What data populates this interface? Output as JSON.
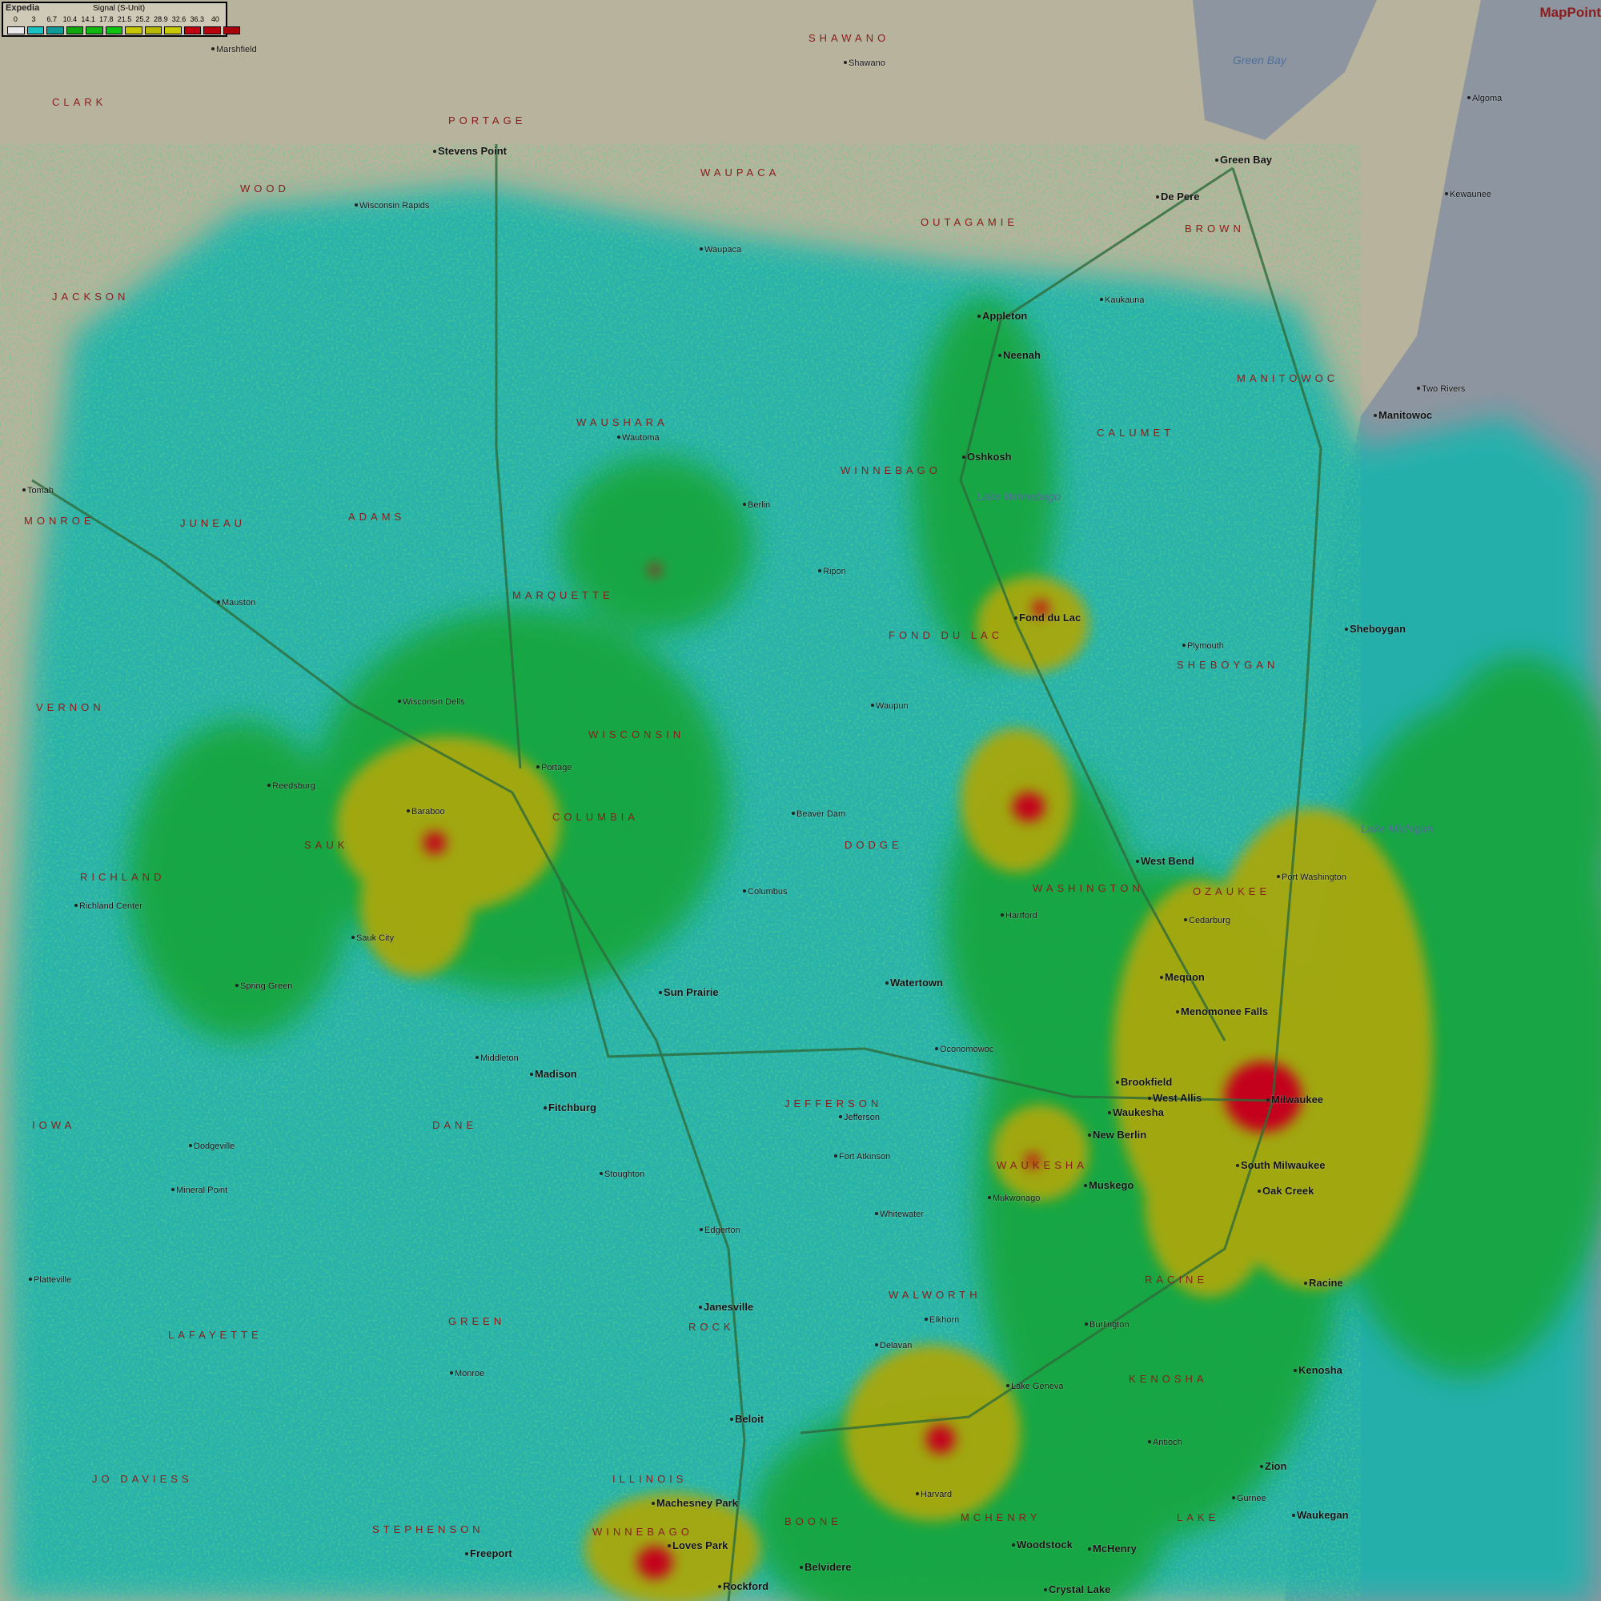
{
  "legend": {
    "brand": "Expedia",
    "title": "Signal (S-Unit)",
    "labels": [
      "0",
      "3",
      "6.7",
      "10.4",
      "14.1",
      "17.8",
      "21.5",
      "25.2",
      "28.9",
      "32.6",
      "36.3",
      "40"
    ],
    "colors": [
      "#e8e8e8",
      "#19c2c2",
      "#119a9a",
      "#0fa60f",
      "#12b812",
      "#0fc40f",
      "#c6c600",
      "#b8b800",
      "#c8c800",
      "#c00010",
      "#b8000c",
      "#a8000a"
    ]
  },
  "brand": "MapPoint",
  "colors": {
    "land": "#b8b39c",
    "lake": "#8d95a0",
    "coverage_weak": "#1fb2ad",
    "coverage_medium": "#14a53a",
    "coverage_strong": "#a8a80e",
    "coverage_peak": "#c4001c",
    "roads": "#2e6b3a"
  },
  "water_labels": [
    "Green Bay",
    "Lake Michigan",
    "Lake Winnebago"
  ],
  "regions": [
    "WISCONSIN",
    "ILLINOIS",
    "IOWA",
    "SHAWANO",
    "WAUPACA",
    "OUTAGAMIE",
    "BROWN",
    "MANITOWOC",
    "CALUMET",
    "WINNEBAGO",
    "FOND DU LAC",
    "SHEBOYGAN",
    "DODGE",
    "COLUMBIA",
    "SAUK",
    "ADAMS",
    "JUNEAU",
    "MARQUETTE",
    "WAUSHARA",
    "PORTAGE",
    "WOOD",
    "CLARK",
    "JACKSON",
    "MONROE",
    "DANE",
    "JEFFERSON",
    "WAUKESHA",
    "WASHINGTON",
    "OZAUKEE",
    "WALWORTH",
    "RACINE",
    "KENOSHA",
    "ROCK",
    "GREEN",
    "LAFAYETTE",
    "WINNEBAGO",
    "BOONE",
    "MCHENRY",
    "LAKE",
    "STEPHENSON",
    "JO DAVIESS",
    "RICHLAND",
    "VERNON"
  ],
  "cities": [
    {
      "name": "Green Bay",
      "major": true
    },
    {
      "name": "Appleton",
      "major": true
    },
    {
      "name": "Oshkosh",
      "major": true
    },
    {
      "name": "Fond du Lac",
      "major": true
    },
    {
      "name": "Sheboygan",
      "major": true
    },
    {
      "name": "Milwaukee",
      "major": true
    },
    {
      "name": "Madison",
      "major": true
    },
    {
      "name": "Janesville",
      "major": true
    },
    {
      "name": "Racine",
      "major": true
    },
    {
      "name": "Kenosha",
      "major": true
    },
    {
      "name": "Waukegan",
      "major": true
    },
    {
      "name": "Rockford",
      "major": true
    },
    {
      "name": "Beloit",
      "major": true
    },
    {
      "name": "Portage",
      "major": false
    },
    {
      "name": "Baraboo",
      "major": false
    },
    {
      "name": "Wisconsin Dells",
      "major": false
    },
    {
      "name": "Stevens Point",
      "major": true
    },
    {
      "name": "Manitowoc",
      "major": true
    },
    {
      "name": "Watertown",
      "major": true
    },
    {
      "name": "Waukesha",
      "major": true
    },
    {
      "name": "West Bend",
      "major": true
    },
    {
      "name": "Tomah",
      "major": false
    },
    {
      "name": "Sun Prairie",
      "major": true
    },
    {
      "name": "Elkhorn",
      "major": false
    },
    {
      "name": "Lake Geneva",
      "major": false
    },
    {
      "name": "Port Washington",
      "major": false
    },
    {
      "name": "Neenah",
      "major": true
    },
    {
      "name": "Marshfield",
      "major": false
    },
    {
      "name": "Freeport",
      "major": true
    },
    {
      "name": "Monroe",
      "major": false
    },
    {
      "name": "Dodgeville",
      "major": false
    },
    {
      "name": "Platteville",
      "major": false
    },
    {
      "name": "Richland Center",
      "major": false
    },
    {
      "name": "Mauston",
      "major": false
    },
    {
      "name": "Berlin",
      "major": false
    },
    {
      "name": "Ripon",
      "major": false
    },
    {
      "name": "Waupun",
      "major": false
    },
    {
      "name": "Beaver Dam",
      "major": false
    },
    {
      "name": "Columbus",
      "major": false
    },
    {
      "name": "Jefferson",
      "major": false
    },
    {
      "name": "Fort Atkinson",
      "major": false
    },
    {
      "name": "Whitewater",
      "major": false
    },
    {
      "name": "Burlington",
      "major": false
    },
    {
      "name": "Oak Creek",
      "major": true
    },
    {
      "name": "Kewaunee",
      "major": false
    },
    {
      "name": "Algoma",
      "major": false
    },
    {
      "name": "Wautoma",
      "major": false
    },
    {
      "name": "Wisconsin Rapids",
      "major": false
    },
    {
      "name": "Two Rivers",
      "major": false
    },
    {
      "name": "Plymouth",
      "major": false
    },
    {
      "name": "Hartford",
      "major": false
    },
    {
      "name": "Oconomowoc",
      "major": false
    },
    {
      "name": "Delavan",
      "major": false
    },
    {
      "name": "Woodstock",
      "major": true
    },
    {
      "name": "McHenry",
      "major": true
    },
    {
      "name": "Menomonee Falls",
      "major": true
    },
    {
      "name": "Brookfield",
      "major": true
    },
    {
      "name": "West Allis",
      "major": true
    },
    {
      "name": "New Berlin",
      "major": true
    },
    {
      "name": "South Milwaukee",
      "major": true
    },
    {
      "name": "Mequon",
      "major": true
    },
    {
      "name": "Cedarburg",
      "major": false
    },
    {
      "name": "Mukwonago",
      "major": false
    },
    {
      "name": "Muskego",
      "major": true
    },
    {
      "name": "Fitchburg",
      "major": true
    },
    {
      "name": "Middleton",
      "major": false
    },
    {
      "name": "Stoughton",
      "major": false
    },
    {
      "name": "Edgerton",
      "major": false
    },
    {
      "name": "De Pere",
      "major": true
    },
    {
      "name": "Kaukauna",
      "major": false
    },
    {
      "name": "Shawano",
      "major": false
    },
    {
      "name": "Waupaca",
      "major": false
    },
    {
      "name": "Reedsburg",
      "major": false
    },
    {
      "name": "Sauk City",
      "major": false
    },
    {
      "name": "Spring Green",
      "major": false
    },
    {
      "name": "Mineral Point",
      "major": false
    },
    {
      "name": "Loves Park",
      "major": true
    },
    {
      "name": "Machesney Park",
      "major": true
    },
    {
      "name": "Belvidere",
      "major": true
    },
    {
      "name": "Crystal Lake",
      "major": true
    },
    {
      "name": "Zion",
      "major": true
    },
    {
      "name": "Gurnee",
      "major": false
    },
    {
      "name": "Antioch",
      "major": false
    },
    {
      "name": "Harvard",
      "major": false
    }
  ]
}
